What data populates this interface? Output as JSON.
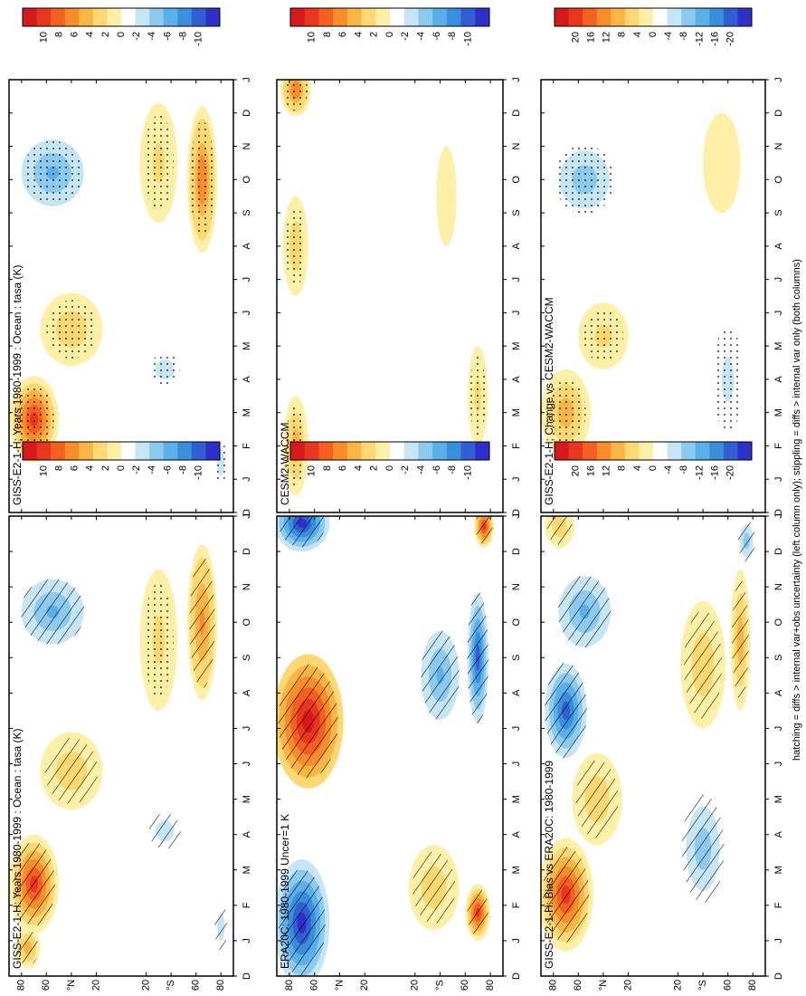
{
  "footer": "hatching = diffs > internal var+obs uncertainty (left column only); stippling = diffs > internal var only (both columns)",
  "colors": {
    "scale": [
      "#d7191c",
      "#e8361f",
      "#f4601f",
      "#f88d2a",
      "#fbb545",
      "#fdd873",
      "#fff0a8",
      "#ffffff",
      "#c6e5f5",
      "#8dcaf0",
      "#5ab0e8",
      "#3a8fdc",
      "#2f5fd3",
      "#2d2fc8"
    ],
    "hatch": "#000000"
  },
  "chart_data": [
    {
      "id": "left-top",
      "type": "heatmap",
      "title": "GISS-E2-1-H: Years 1980-1999 : Ocean : tasa (K)",
      "xlabel": "",
      "ylabel": "",
      "x_ticks": [
        "D",
        "J",
        "F",
        "M",
        "A",
        "M",
        "J",
        "J",
        "A",
        "S",
        "O",
        "N",
        "D",
        "J"
      ],
      "y_ticks": [
        "80",
        "60",
        "°N",
        "20",
        "20",
        "°S",
        "60",
        "80"
      ],
      "colorbar": {
        "ticks": [
          "10",
          "8",
          "6",
          "4",
          "2",
          "0",
          "-2",
          "-4",
          "-6",
          "-8",
          "-10"
        ]
      },
      "anomalies": [
        {
          "month": 2.6,
          "lat": 70,
          "value": 9,
          "spread_month": 1.4,
          "spread_lat": 20
        },
        {
          "month": 5.8,
          "lat": 40,
          "value": 3,
          "spread_month": 1.1,
          "spread_lat": 25
        },
        {
          "month": 10.3,
          "lat": 55,
          "value": -5,
          "spread_month": 1.1,
          "spread_lat": 30
        },
        {
          "month": 0.8,
          "lat": 75,
          "value": 4,
          "spread_month": 0.6,
          "spread_lat": 10
        },
        {
          "month": 4.1,
          "lat": -35,
          "value": -3,
          "spread_month": 0.6,
          "spread_lat": 15
        },
        {
          "month": 10.0,
          "lat": -65,
          "value": 5,
          "spread_month": 2.2,
          "spread_lat": 12
        },
        {
          "month": 9.5,
          "lat": -30,
          "value": 2,
          "spread_month": 2.0,
          "spread_lat": 15
        },
        {
          "month": 1.4,
          "lat": -80,
          "value": -3,
          "spread_month": 0.8,
          "spread_lat": 6
        }
      ]
    },
    {
      "id": "right-top",
      "type": "heatmap",
      "title": "GISS-E2-1-H: Years 1980-1999 : Ocean : tasa (K)",
      "x_ticks": [
        "D",
        "J",
        "F",
        "M",
        "A",
        "M",
        "J",
        "J",
        "A",
        "S",
        "O",
        "N",
        "D",
        "J"
      ],
      "y_ticks": [
        "80",
        "60",
        "°N",
        "20",
        "20",
        "°S",
        "60",
        "80"
      ],
      "colorbar": {
        "ticks": [
          "10",
          "8",
          "6",
          "4",
          "2",
          "0",
          "-2",
          "-4",
          "-6",
          "-8",
          "-10"
        ]
      },
      "anomalies": [
        {
          "month": 2.8,
          "lat": 70,
          "value": 9,
          "spread_month": 1.3,
          "spread_lat": 20
        },
        {
          "month": 5.5,
          "lat": 40,
          "value": 3,
          "spread_month": 1.1,
          "spread_lat": 25
        },
        {
          "month": 10.2,
          "lat": 55,
          "value": -5,
          "spread_month": 1.2,
          "spread_lat": 30
        },
        {
          "month": 4.3,
          "lat": -35,
          "value": -3,
          "spread_month": 0.6,
          "spread_lat": 15
        },
        {
          "month": 10.0,
          "lat": -65,
          "value": 6,
          "spread_month": 2.2,
          "spread_lat": 12
        },
        {
          "month": 10.5,
          "lat": -30,
          "value": 2,
          "spread_month": 1.8,
          "spread_lat": 15
        },
        {
          "month": 1.5,
          "lat": -80,
          "value": -3,
          "spread_month": 0.8,
          "spread_lat": 6
        }
      ]
    },
    {
      "id": "left-middle",
      "type": "heatmap",
      "title": "ERA20C: 1980-1999 Uncer=1 K",
      "x_ticks": [
        "D",
        "J",
        "F",
        "M",
        "A",
        "M",
        "J",
        "J",
        "A",
        "S",
        "O",
        "N",
        "D",
        "J"
      ],
      "y_ticks": [
        "80",
        "60",
        "°N",
        "20",
        "20",
        "°S",
        "60",
        "80"
      ],
      "colorbar": {
        "ticks": [
          "10",
          "8",
          "6",
          "4",
          "2",
          "0",
          "-2",
          "-4",
          "-6",
          "-8",
          "-10"
        ]
      },
      "anomalies": [
        {
          "month": 1.5,
          "lat": 70,
          "value": -10,
          "spread_month": 1.8,
          "spread_lat": 22
        },
        {
          "month": 12.8,
          "lat": 70,
          "value": -10,
          "spread_month": 0.8,
          "spread_lat": 22
        },
        {
          "month": 7.2,
          "lat": 65,
          "value": 10,
          "spread_month": 1.9,
          "spread_lat": 28
        },
        {
          "month": 8.5,
          "lat": -40,
          "value": -5,
          "spread_month": 1.5,
          "spread_lat": 18
        },
        {
          "month": 9.0,
          "lat": -70,
          "value": -8,
          "spread_month": 2.2,
          "spread_lat": 10
        },
        {
          "month": 1.8,
          "lat": -70,
          "value": 9,
          "spread_month": 0.8,
          "spread_lat": 10
        },
        {
          "month": 12.7,
          "lat": -75,
          "value": 9,
          "spread_month": 0.6,
          "spread_lat": 8
        },
        {
          "month": 2.5,
          "lat": -35,
          "value": 3,
          "spread_month": 1.2,
          "spread_lat": 20
        }
      ]
    },
    {
      "id": "right-middle",
      "type": "heatmap",
      "title": "CESM2-WACCM",
      "x_ticks": [
        "D",
        "J",
        "F",
        "M",
        "A",
        "M",
        "J",
        "J",
        "A",
        "S",
        "O",
        "N",
        "D",
        "J"
      ],
      "y_ticks": [
        "80",
        "60",
        "°N",
        "20",
        "20",
        "°S",
        "60",
        "80"
      ],
      "colorbar": {
        "ticks": [
          "10",
          "8",
          "6",
          "4",
          "2",
          "0",
          "-2",
          "-4",
          "-6",
          "-8",
          "-10"
        ]
      },
      "anomalies": [
        {
          "month": 12.7,
          "lat": 75,
          "value": 6,
          "spread_month": 0.8,
          "spread_lat": 12
        },
        {
          "month": 2.0,
          "lat": 75,
          "value": 4,
          "spread_month": 1.5,
          "spread_lat": 10
        },
        {
          "month": 8.0,
          "lat": 75,
          "value": 3,
          "spread_month": 1.5,
          "spread_lat": 10
        },
        {
          "month": 3.5,
          "lat": -70,
          "value": 2,
          "spread_month": 1.5,
          "spread_lat": 8
        },
        {
          "month": 9.5,
          "lat": -45,
          "value": 1.5,
          "spread_month": 1.5,
          "spread_lat": 8
        }
      ]
    },
    {
      "id": "left-bottom",
      "type": "heatmap",
      "title": "GISS-E2-1-H: Bias vs ERA20C: 1980-1999",
      "x_ticks": [
        "D",
        "J",
        "F",
        "M",
        "A",
        "M",
        "J",
        "J",
        "A",
        "S",
        "O",
        "N",
        "D",
        "J"
      ],
      "y_ticks": [
        "80",
        "60",
        "°N",
        "20",
        "20",
        "°S",
        "60",
        "80"
      ],
      "colorbar": {
        "ticks": [
          "20",
          "16",
          "12",
          "8",
          "4",
          "0",
          "-4",
          "-8",
          "-12",
          "-16",
          "-20"
        ]
      },
      "anomalies": [
        {
          "month": 2.3,
          "lat": 70,
          "value": 18,
          "spread_month": 1.6,
          "spread_lat": 22
        },
        {
          "month": 5.0,
          "lat": 45,
          "value": 6,
          "spread_month": 1.3,
          "spread_lat": 20
        },
        {
          "month": 7.5,
          "lat": 70,
          "value": -18,
          "spread_month": 1.6,
          "spread_lat": 20
        },
        {
          "month": 10.3,
          "lat": 55,
          "value": -10,
          "spread_month": 1.2,
          "spread_lat": 25
        },
        {
          "month": 3.6,
          "lat": -40,
          "value": -8,
          "spread_month": 1.8,
          "spread_lat": 20
        },
        {
          "month": 8.8,
          "lat": -40,
          "value": 6,
          "spread_month": 1.8,
          "spread_lat": 18
        },
        {
          "month": 9.5,
          "lat": -70,
          "value": 8,
          "spread_month": 2.0,
          "spread_lat": 8
        },
        {
          "month": 12.3,
          "lat": -75,
          "value": -8,
          "spread_month": 0.7,
          "spread_lat": 8
        },
        {
          "month": 12.7,
          "lat": 75,
          "value": 6,
          "spread_month": 0.6,
          "spread_lat": 12
        }
      ]
    },
    {
      "id": "right-bottom",
      "type": "heatmap",
      "title": "GISS-E2-1-H: Change vs CESM2-WACCM",
      "x_ticks": [
        "D",
        "J",
        "F",
        "M",
        "A",
        "M",
        "J",
        "J",
        "A",
        "S",
        "O",
        "N",
        "D",
        "J"
      ],
      "y_ticks": [
        "80",
        "60",
        "°N",
        "20",
        "20",
        "°S",
        "60",
        "80"
      ],
      "colorbar": {
        "ticks": [
          "20",
          "16",
          "12",
          "8",
          "4",
          "0",
          "-4",
          "-8",
          "-12",
          "-16",
          "-20"
        ]
      },
      "anomalies": [
        {
          "month": 3.0,
          "lat": 70,
          "value": 8,
          "spread_month": 1.3,
          "spread_lat": 20
        },
        {
          "month": 5.3,
          "lat": 40,
          "value": 4,
          "spread_month": 1.0,
          "spread_lat": 20
        },
        {
          "month": 10.0,
          "lat": 55,
          "value": -8,
          "spread_month": 1.3,
          "spread_lat": 30
        },
        {
          "month": 4.0,
          "lat": -60,
          "value": -4,
          "spread_month": 2.0,
          "spread_lat": 15
        },
        {
          "month": 10.5,
          "lat": -55,
          "value": 3,
          "spread_month": 1.5,
          "spread_lat": 15
        },
        {
          "month": 0.8,
          "lat": 75,
          "value": -3,
          "spread_month": 0.4,
          "spread_lat": 8
        }
      ]
    }
  ]
}
